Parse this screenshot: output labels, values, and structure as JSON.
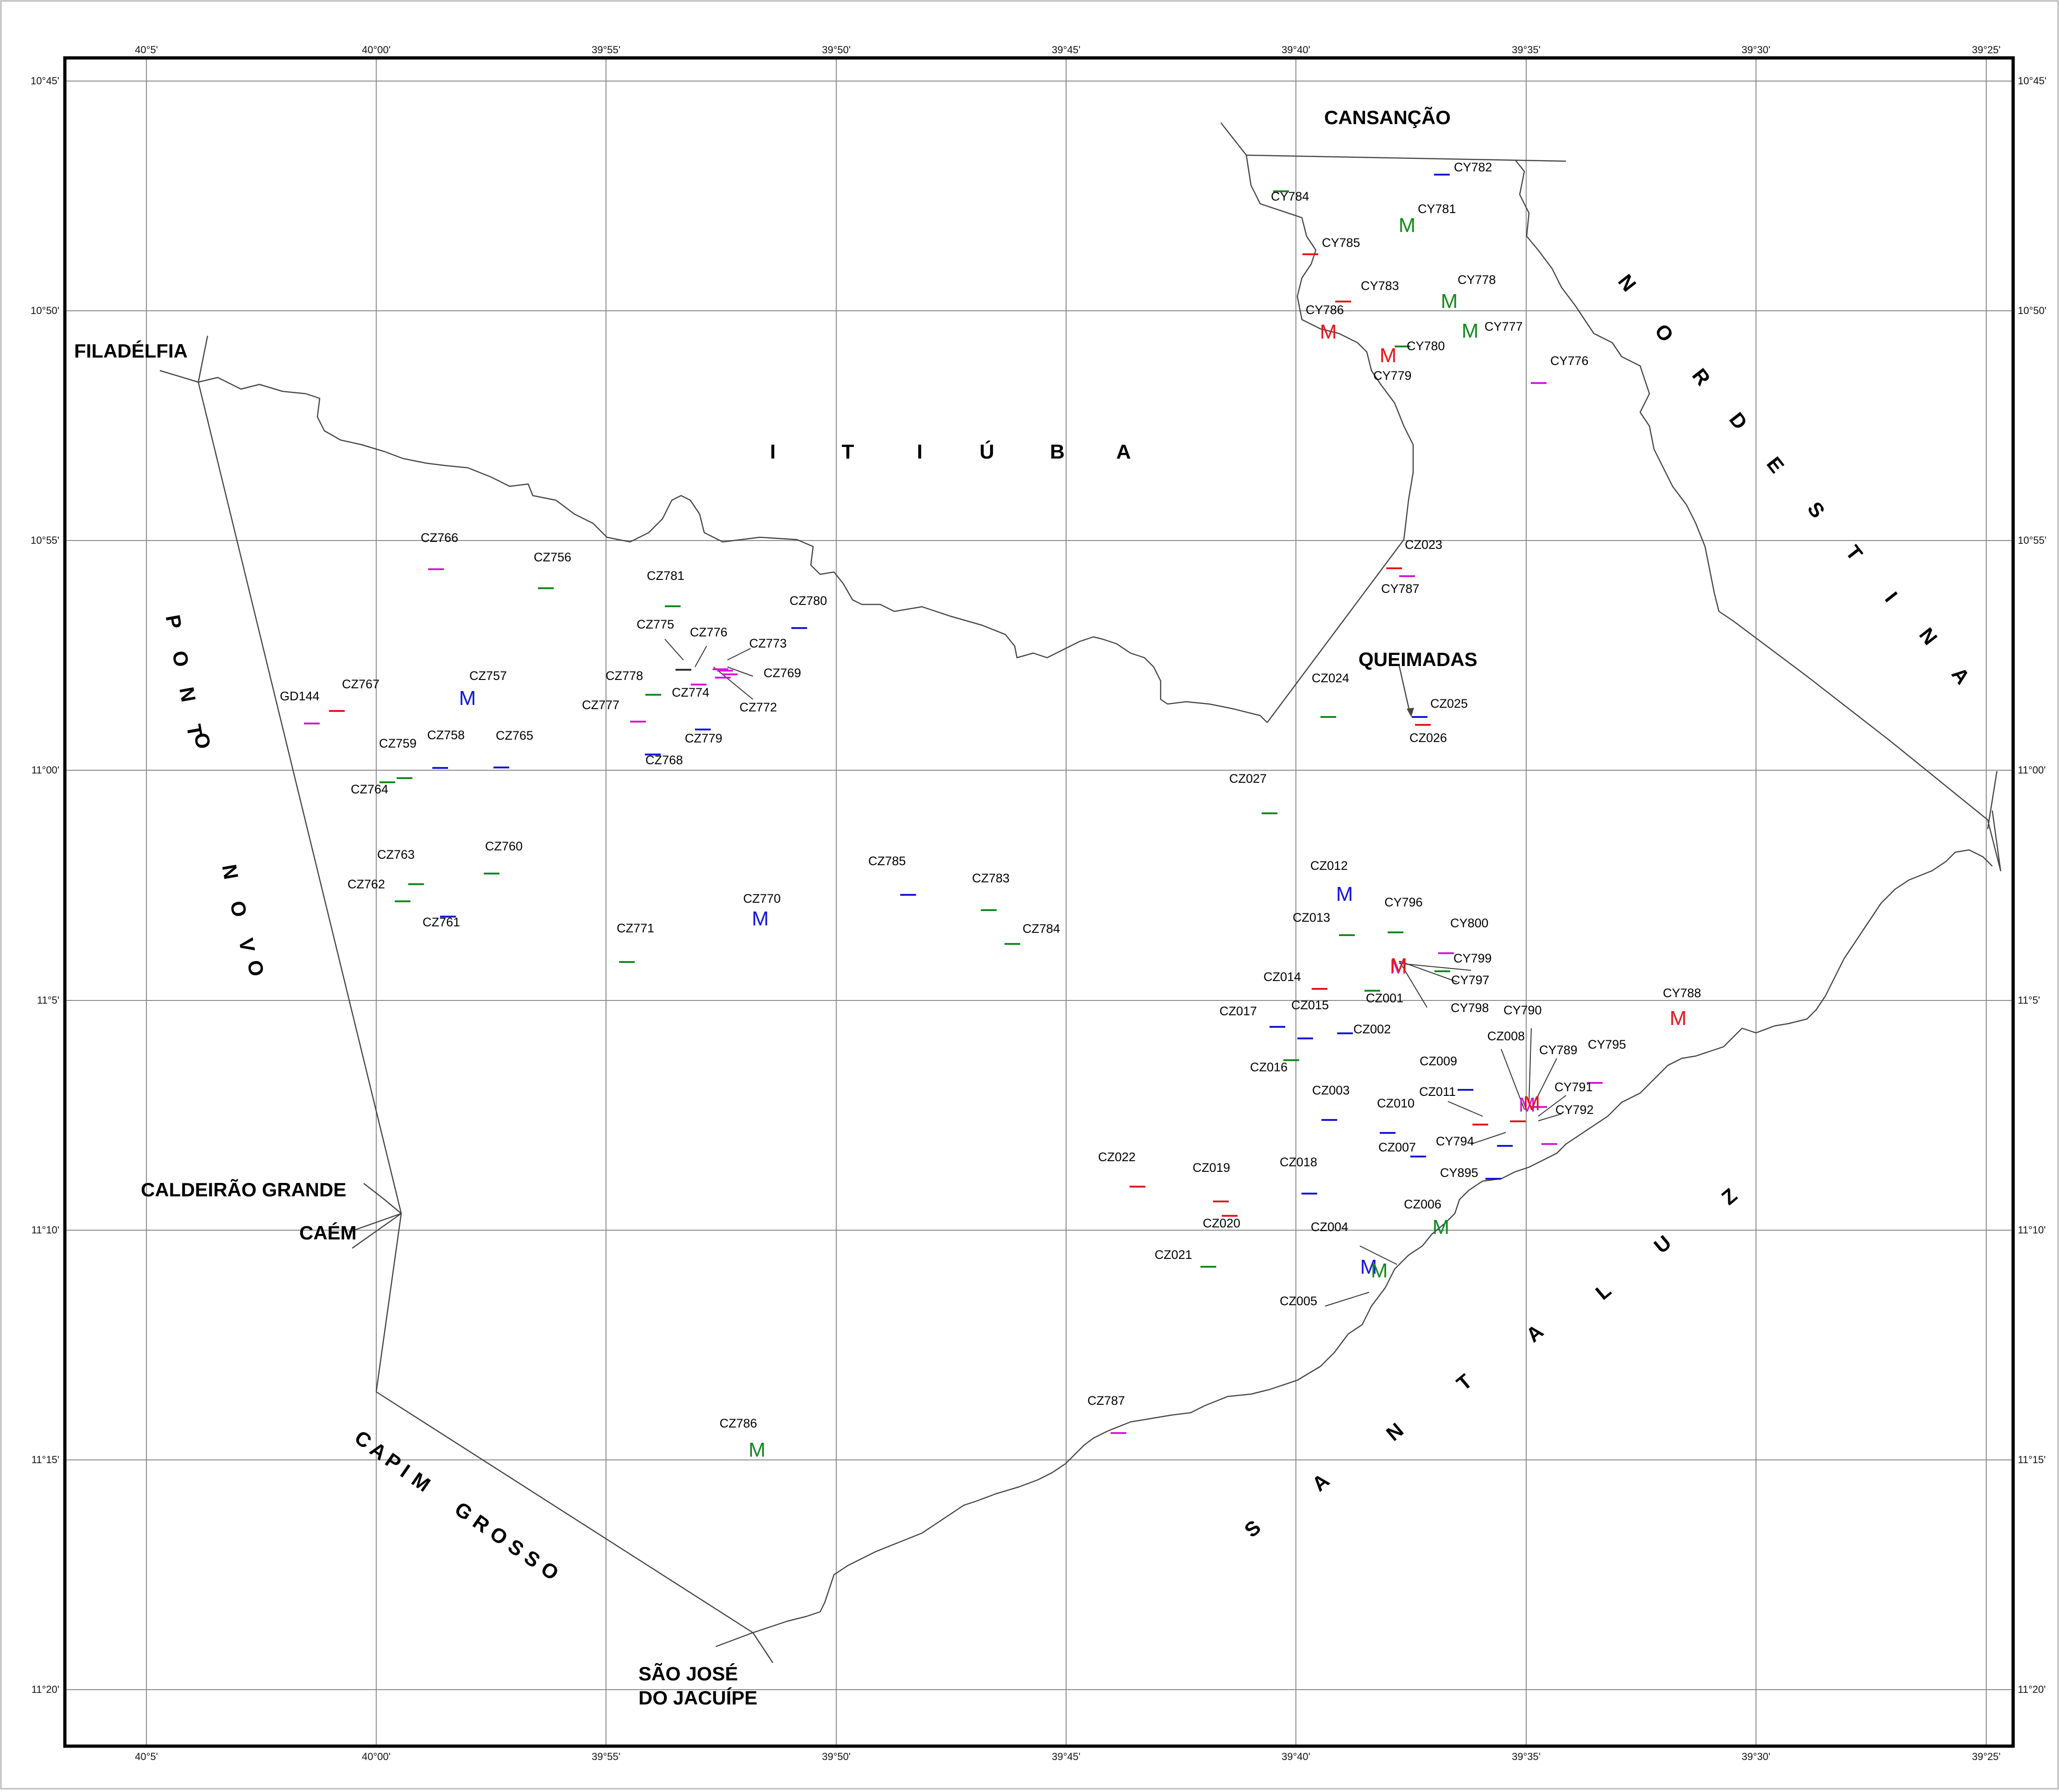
{
  "map": {
    "longitude_ticks": [
      "40°5'",
      "40°00'",
      "39°55'",
      "39°50'",
      "39°45'",
      "39°40'",
      "39°35'",
      "39°30'",
      "39°25'"
    ],
    "latitude_ticks": [
      "10°45'",
      "10°50'",
      "10°55'",
      "11°00'",
      "11°5'",
      "11°10'",
      "11°15'",
      "11°20'"
    ],
    "colors": {
      "red": "#e3161d",
      "green": "#13891f",
      "blue": "#1515d9",
      "magenta": "#d319d3",
      "dark": "#3a2a2a",
      "boundary": "#444444",
      "grid": "#8a8a8a"
    },
    "places": [
      "FILADÉLFIA",
      "CANSANÇÃO",
      "QUEIMADAS",
      "CALDEIRÃO GRANDE",
      "CAÉM",
      "SÃO JOSÉ",
      "DO JACUÍPE"
    ],
    "regions": {
      "itiuba": [
        "I",
        "T",
        "I",
        "Ú",
        "B",
        "A"
      ],
      "nordestina": [
        "N",
        "O",
        "R",
        "D",
        "E",
        "S",
        "T",
        "I",
        "N",
        "A"
      ],
      "ponto_novo": [
        "P",
        "O",
        "N",
        "T",
        "O",
        "N",
        "O",
        "V",
        "O"
      ],
      "capim_grosso": [
        "C",
        "A",
        "P",
        "I",
        "M",
        "G",
        "R",
        "O",
        "S",
        "S",
        "O"
      ],
      "santaluz": [
        "S",
        "A",
        "N",
        "T",
        "A",
        "L",
        "U",
        "Z"
      ]
    },
    "sample_points": [
      {
        "label": "CY782",
        "color": "blue",
        "mark": "dash"
      },
      {
        "label": "CY784",
        "color": "green",
        "mark": "dash"
      },
      {
        "label": "CY781",
        "color": "green",
        "mark": "M"
      },
      {
        "label": "CY785",
        "color": "red",
        "mark": "dash"
      },
      {
        "label": "CY783",
        "color": "red",
        "mark": "dash"
      },
      {
        "label": "CY778",
        "color": "green",
        "mark": "M"
      },
      {
        "label": "CY786",
        "color": "red",
        "mark": "M"
      },
      {
        "label": "CY777",
        "color": "green",
        "mark": "M"
      },
      {
        "label": "CY780",
        "color": "green",
        "mark": "dash"
      },
      {
        "label": "CY779",
        "color": "red",
        "mark": "M"
      },
      {
        "label": "CY776",
        "color": "magenta",
        "mark": "dash"
      },
      {
        "label": "CZ023",
        "color": "red",
        "mark": "dash"
      },
      {
        "label": "CY787",
        "color": "magenta",
        "mark": "dash"
      },
      {
        "label": "CZ024",
        "color": "green",
        "mark": "dash"
      },
      {
        "label": "CZ025",
        "color": "blue",
        "mark": "dash"
      },
      {
        "label": "CZ026",
        "color": "red",
        "mark": "dash"
      },
      {
        "label": "CZ766",
        "color": "magenta",
        "mark": "dash"
      },
      {
        "label": "CZ756",
        "color": "green",
        "mark": "dash"
      },
      {
        "label": "CZ781",
        "color": "green",
        "mark": "dash"
      },
      {
        "label": "CZ780",
        "color": "blue",
        "mark": "dash"
      },
      {
        "label": "CZ775",
        "color": "dark",
        "mark": "dash"
      },
      {
        "label": "CZ776",
        "color": "magenta",
        "mark": "dash"
      },
      {
        "label": "CZ773",
        "color": "magenta",
        "mark": "dash"
      },
      {
        "label": "CZ769",
        "color": "magenta",
        "mark": "dash"
      },
      {
        "label": "CZ778",
        "color": "green",
        "mark": "dash"
      },
      {
        "label": "CZ774",
        "color": "magenta",
        "mark": "dash"
      },
      {
        "label": "CZ772",
        "color": "magenta",
        "mark": "dash"
      },
      {
        "label": "CZ777",
        "color": "magenta",
        "mark": "dash"
      },
      {
        "label": "CZ779",
        "color": "blue",
        "mark": "dash"
      },
      {
        "label": "CZ768",
        "color": "blue",
        "mark": "dash"
      },
      {
        "label": "GD144",
        "color": "magenta",
        "mark": "dash"
      },
      {
        "label": "CZ767",
        "color": "red",
        "mark": "dash"
      },
      {
        "label": "CZ757",
        "color": "blue",
        "mark": "M"
      },
      {
        "label": "CZ759",
        "color": "green",
        "mark": "dash"
      },
      {
        "label": "CZ758",
        "color": "blue",
        "mark": "dash"
      },
      {
        "label": "CZ765",
        "color": "blue",
        "mark": "dash"
      },
      {
        "label": "CZ764",
        "color": "green",
        "mark": "dash"
      },
      {
        "label": "CZ027",
        "color": "green",
        "mark": "dash"
      },
      {
        "label": "CZ763",
        "color": "green",
        "mark": "dash"
      },
      {
        "label": "CZ760",
        "color": "green",
        "mark": "dash"
      },
      {
        "label": "CZ762",
        "color": "green",
        "mark": "dash"
      },
      {
        "label": "CZ761",
        "color": "blue",
        "mark": "dash"
      },
      {
        "label": "CZ785",
        "color": "blue",
        "mark": "dash"
      },
      {
        "label": "CZ783",
        "color": "green",
        "mark": "dash"
      },
      {
        "label": "CZ770",
        "color": "blue",
        "mark": "M"
      },
      {
        "label": "CZ784",
        "color": "green",
        "mark": "dash"
      },
      {
        "label": "CZ771",
        "color": "green",
        "mark": "dash"
      },
      {
        "label": "CZ012",
        "color": "blue",
        "mark": "M"
      },
      {
        "label": "CY796",
        "color": "green",
        "mark": "dash"
      },
      {
        "label": "CZ013",
        "color": "green",
        "mark": "dash"
      },
      {
        "label": "CY800",
        "color": "magenta",
        "mark": "dash"
      },
      {
        "label": "CY799",
        "color": "green",
        "mark": "dash"
      },
      {
        "label": "CY797",
        "color": "magenta",
        "mark": "M"
      },
      {
        "label": "CZ014",
        "color": "red",
        "mark": "dash"
      },
      {
        "label": "CZ001",
        "color": "green",
        "mark": "dash"
      },
      {
        "label": "CY798",
        "color": "red",
        "mark": "M"
      },
      {
        "label": "CY788",
        "color": "red",
        "mark": "M"
      },
      {
        "label": "CZ017",
        "color": "blue",
        "mark": "dash"
      },
      {
        "label": "CZ015",
        "color": "blue",
        "mark": "dash"
      },
      {
        "label": "CZ002",
        "color": "blue",
        "mark": "dash"
      },
      {
        "label": "CY790",
        "color": "magenta",
        "mark": "M"
      },
      {
        "label": "CZ008",
        "color": "red",
        "mark": "dash"
      },
      {
        "label": "CY789",
        "color": "magenta",
        "mark": "dash"
      },
      {
        "label": "CY795",
        "color": "magenta",
        "mark": "dash"
      },
      {
        "label": "CZ016",
        "color": "green",
        "mark": "dash"
      },
      {
        "label": "CZ009",
        "color": "blue",
        "mark": "dash"
      },
      {
        "label": "CY791",
        "color": "red",
        "mark": "M"
      },
      {
        "label": "CZ003",
        "color": "blue",
        "mark": "dash"
      },
      {
        "label": "CZ011",
        "color": "red",
        "mark": "dash"
      },
      {
        "label": "CY792",
        "color": "magenta",
        "mark": "dash"
      },
      {
        "label": "CZ010",
        "color": "blue",
        "mark": "dash"
      },
      {
        "label": "CZ007",
        "color": "blue",
        "mark": "dash"
      },
      {
        "label": "CY794",
        "color": "blue",
        "mark": "dash"
      },
      {
        "label": "CY895",
        "color": "blue",
        "mark": "dash"
      },
      {
        "label": "CZ022",
        "color": "red",
        "mark": "dash"
      },
      {
        "label": "CZ019",
        "color": "red",
        "mark": "dash"
      },
      {
        "label": "CZ018",
        "color": "blue",
        "mark": "dash"
      },
      {
        "label": "CZ020",
        "color": "red",
        "mark": "dash"
      },
      {
        "label": "CZ006",
        "color": "green",
        "mark": "M"
      },
      {
        "label": "CZ004",
        "color": "blue",
        "mark": "M"
      },
      {
        "label": "CZ021",
        "color": "green",
        "mark": "dash"
      },
      {
        "label": "CZ005",
        "color": "green",
        "mark": "M"
      },
      {
        "label": "CZ786",
        "color": "green",
        "mark": "M"
      },
      {
        "label": "CZ787",
        "color": "magenta",
        "mark": "dash"
      }
    ],
    "m_letter": "M"
  }
}
